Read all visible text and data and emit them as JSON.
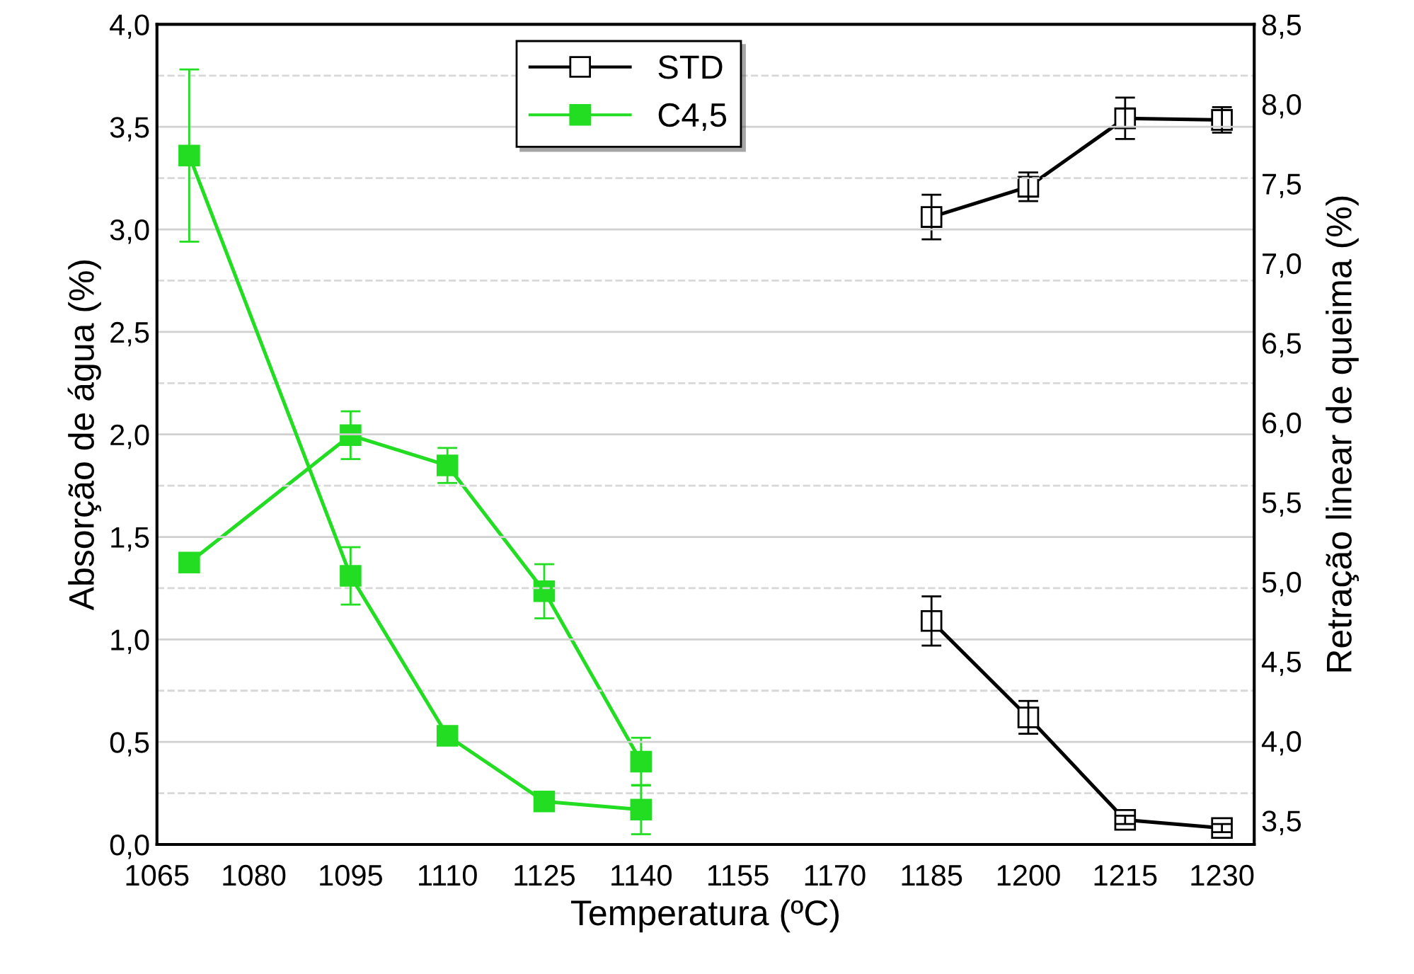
{
  "chart_data": {
    "type": "line",
    "xlabel": "Temperatura (ºC)",
    "ylabel": "Absorção de água (%)",
    "y2label": "Retração linear de queima (%)",
    "xlim": [
      1065,
      1235
    ],
    "xticks": [
      1065,
      1080,
      1095,
      1110,
      1125,
      1140,
      1155,
      1170,
      1185,
      1200,
      1215,
      1230
    ],
    "ylim": [
      0,
      4.0
    ],
    "yticks": [
      {
        "value": 0,
        "label": "0,0"
      },
      {
        "value": 0.5,
        "label": "0,5"
      },
      {
        "value": 1.0,
        "label": "1,0"
      },
      {
        "value": 1.5,
        "label": "1,5"
      },
      {
        "value": 2.0,
        "label": "2,0"
      },
      {
        "value": 2.5,
        "label": "2,5"
      },
      {
        "value": 3.0,
        "label": "3,0"
      },
      {
        "value": 3.5,
        "label": "3,5"
      },
      {
        "value": 4.0,
        "label": "4,0"
      }
    ],
    "y2lim": [
      3.35,
      8.5
    ],
    "y2ticks": [
      {
        "value": 3.5,
        "label": "3,5"
      },
      {
        "value": 4.0,
        "label": "4,0"
      },
      {
        "value": 4.5,
        "label": "4,5"
      },
      {
        "value": 5.0,
        "label": "5,0"
      },
      {
        "value": 5.5,
        "label": "5,5"
      },
      {
        "value": 6.0,
        "label": "6,0"
      },
      {
        "value": 6.5,
        "label": "6,5"
      },
      {
        "value": 7.0,
        "label": "7,0"
      },
      {
        "value": 7.5,
        "label": "7,5"
      },
      {
        "value": 8.0,
        "label": "8,0"
      },
      {
        "value": 8.5,
        "label": "8,5"
      }
    ],
    "grid": "y",
    "legend": "top",
    "line_style": "solid",
    "series": [
      {
        "name": "STD",
        "color": "#000000",
        "marker": "square",
        "x": [
          1185,
          1200,
          1215,
          1230
        ],
        "values": [
          1.09,
          0.62,
          0.12,
          0.08
        ],
        "errors": [
          0.12,
          0.08,
          0.02,
          0.02
        ]
      },
      {
        "color": "#000000",
        "marker": "square",
        "axis": "y2",
        "x": [
          1185,
          1200,
          1215,
          1230
        ],
        "values": [
          7.29,
          7.48,
          7.91,
          7.9
        ],
        "errors": [
          0.14,
          0.09,
          0.13,
          0.08
        ]
      },
      {
        "name": "C4,5",
        "color": "#22dd22",
        "marker": "square",
        "x": [
          1070,
          1095,
          1110,
          1125,
          1140
        ],
        "values": [
          3.36,
          1.31,
          0.53,
          0.21,
          0.17
        ],
        "errors": [
          0.42,
          0.14,
          null,
          null,
          0.12
        ]
      },
      {
        "color": "#22dd22",
        "marker": "square",
        "axis": "y2",
        "x": [
          1070,
          1095,
          1110,
          1125,
          1140
        ],
        "values": [
          5.12,
          5.92,
          5.73,
          4.94,
          3.87
        ],
        "errors": [
          null,
          0.15,
          0.11,
          0.17,
          0.15
        ]
      }
    ]
  }
}
